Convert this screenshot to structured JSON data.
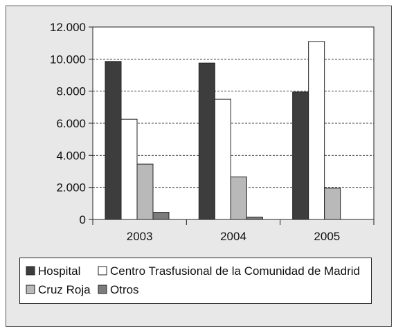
{
  "chart_data": {
    "type": "bar",
    "categories": [
      "2003",
      "2004",
      "2005"
    ],
    "series": [
      {
        "name": "Hospital",
        "values": [
          9850,
          9750,
          7950
        ],
        "color": "#3d3d3d"
      },
      {
        "name": "Centro Trasfusional de la Comunidad de Madrid",
        "values": [
          6250,
          7500,
          11100
        ],
        "color": "#ffffff"
      },
      {
        "name": "Cruz Roja",
        "values": [
          3450,
          2650,
          1950
        ],
        "color": "#b9b9b9"
      },
      {
        "name": "Otros",
        "values": [
          450,
          150,
          0
        ],
        "color": "#7c7c7c"
      }
    ],
    "ylim": [
      0,
      12000
    ],
    "yticks": [
      0,
      2000,
      4000,
      6000,
      8000,
      10000,
      12000
    ],
    "ytick_labels": [
      "0",
      "2.000",
      "4.000",
      "6.000",
      "8.000",
      "10.000",
      "12.000"
    ],
    "grid": "horizontal dashed",
    "legend_position": "bottom",
    "title": "",
    "xlabel": "",
    "ylabel": ""
  },
  "colors": {
    "panel_background": "#e8e8e8",
    "plot_background": "#ffffff",
    "axis": "#222222"
  }
}
